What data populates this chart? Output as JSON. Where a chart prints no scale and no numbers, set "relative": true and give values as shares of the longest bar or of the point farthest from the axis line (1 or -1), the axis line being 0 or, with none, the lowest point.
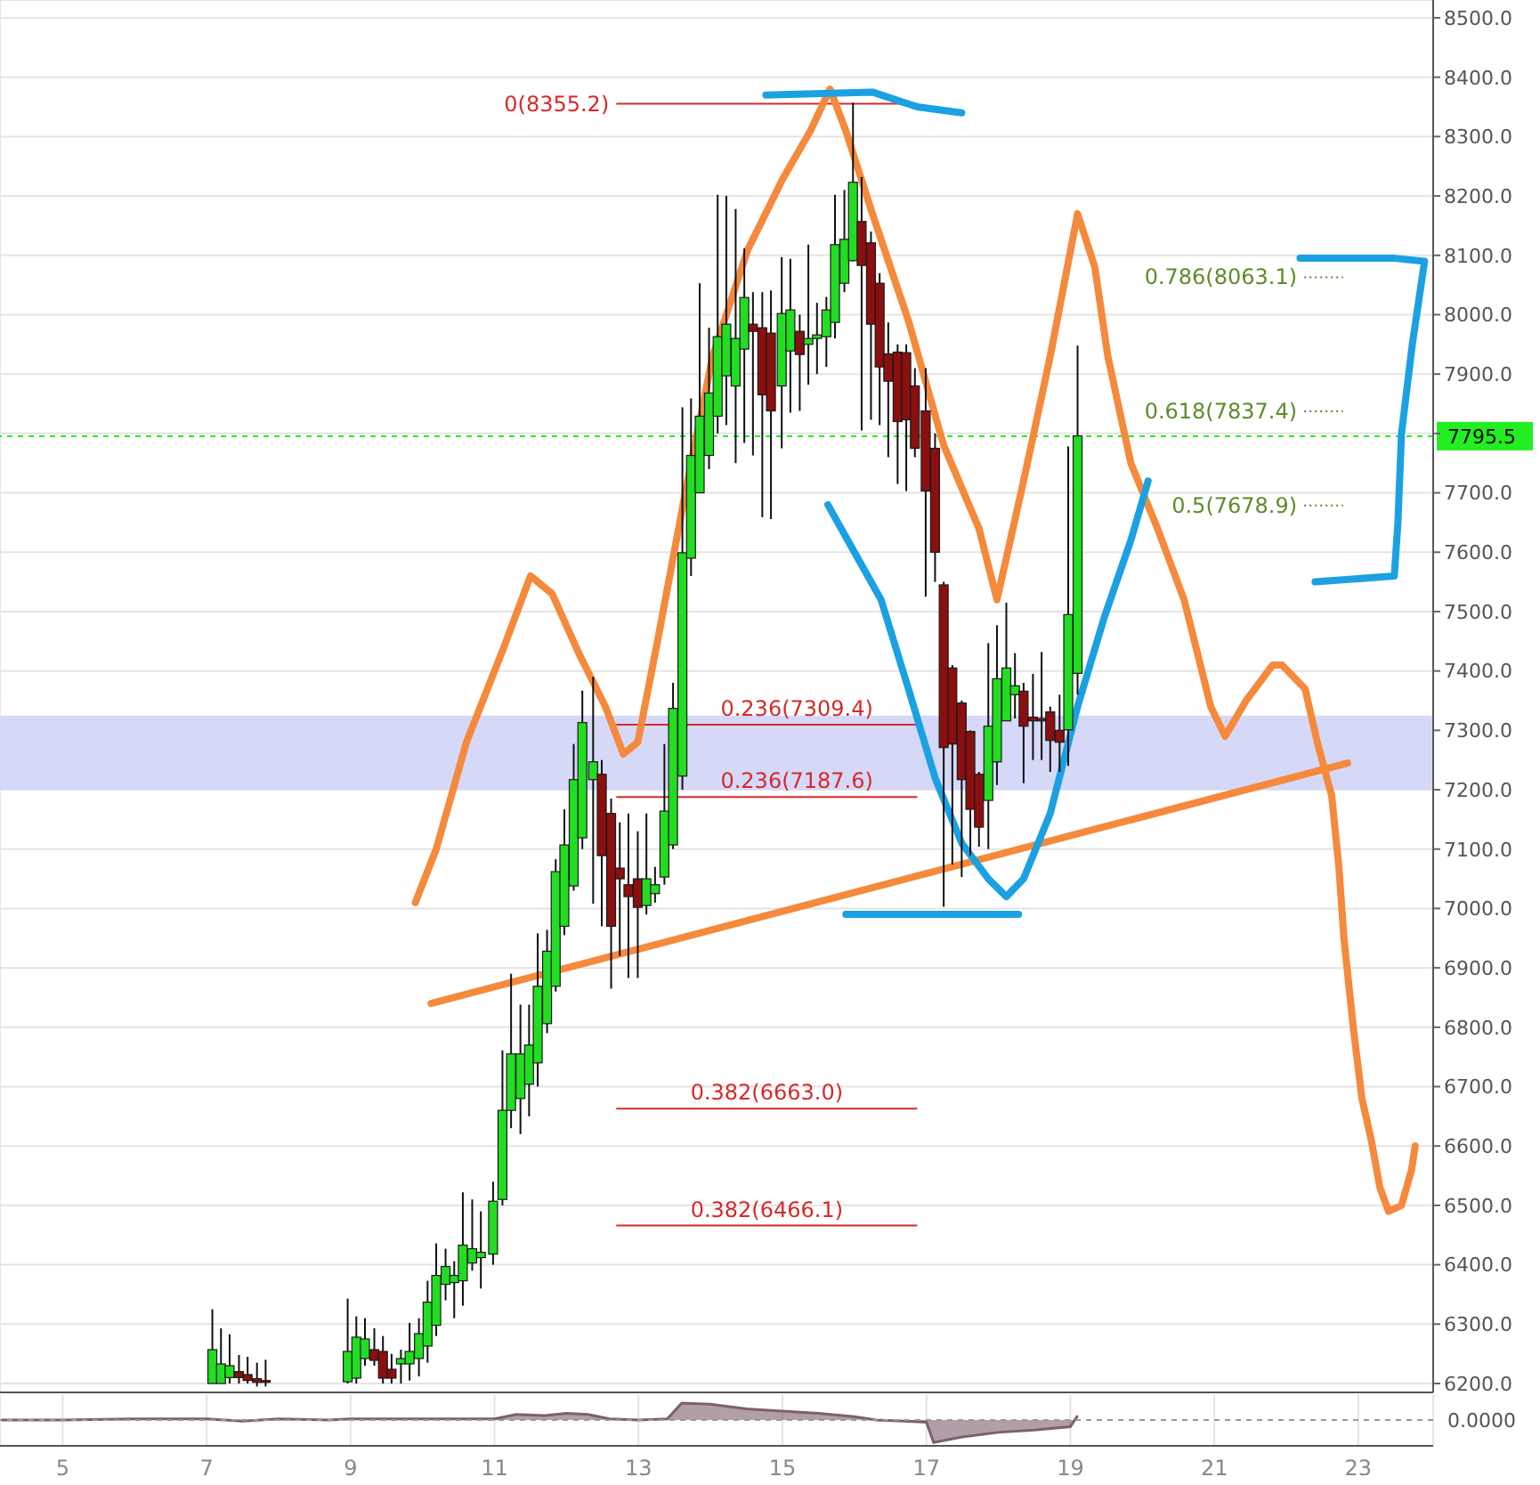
{
  "chart_data": [
    {
      "type": "candlestick",
      "x": [
        7.08,
        7.2,
        7.32,
        7.45,
        7.57,
        7.7,
        7.82,
        8.96,
        9.08,
        9.2,
        9.33,
        9.45,
        9.57,
        9.7,
        9.82,
        9.95,
        10.07,
        10.19,
        10.32,
        10.44,
        10.56,
        10.69,
        10.81,
        10.98,
        11.11,
        11.23,
        11.36,
        11.48,
        11.6,
        11.73,
        11.85,
        11.97,
        12.1,
        12.22,
        12.37,
        12.49,
        12.62,
        12.74,
        12.86,
        12.99,
        13.11,
        13.23,
        13.36,
        13.48,
        13.61,
        13.73,
        13.85,
        13.98,
        14.1,
        14.22,
        14.35,
        14.47,
        14.59,
        14.72,
        14.84,
        14.99,
        15.11,
        15.24,
        15.36,
        15.48,
        15.61,
        15.73,
        15.86,
        15.98,
        16.1,
        16.23,
        16.35,
        16.47,
        16.6,
        16.72,
        16.84,
        16.99,
        17.12,
        17.24,
        17.36,
        17.49,
        17.61,
        17.73,
        17.86,
        17.98,
        18.11,
        18.23,
        18.35,
        18.48,
        18.6,
        18.72,
        18.85,
        18.97,
        19.1
      ],
      "ohlc": [
        [
          6200,
          6325,
          6200,
          6257
        ],
        [
          6200,
          6293,
          6200,
          6233
        ],
        [
          6210,
          6283,
          6200,
          6230
        ],
        [
          6220,
          6248,
          6200,
          6210
        ],
        [
          6215,
          6245,
          6200,
          6205
        ],
        [
          6208,
          6235,
          6195,
          6202
        ],
        [
          6205,
          6240,
          6195,
          6202
        ],
        [
          6203,
          6343,
          6200,
          6254
        ],
        [
          6209,
          6313,
          6200,
          6278
        ],
        [
          6242,
          6310,
          6230,
          6275
        ],
        [
          6257,
          6293,
          6230,
          6239
        ],
        [
          6254,
          6280,
          6200,
          6209
        ],
        [
          6224,
          6250,
          6200,
          6209
        ],
        [
          6233,
          6257,
          6200,
          6242
        ],
        [
          6233,
          6302,
          6205,
          6254
        ],
        [
          6242,
          6310,
          6212,
          6284
        ],
        [
          6263,
          6373,
          6235,
          6337
        ],
        [
          6298,
          6436,
          6280,
          6382
        ],
        [
          6367,
          6427,
          6340,
          6397
        ],
        [
          6370,
          6406,
          6310,
          6382
        ],
        [
          6373,
          6522,
          6331,
          6433
        ],
        [
          6403,
          6510,
          6390,
          6427
        ],
        [
          6412,
          6490,
          6360,
          6421
        ],
        [
          6418,
          6540,
          6400,
          6507
        ],
        [
          6510,
          6761,
          6500,
          6660
        ],
        [
          6660,
          6890,
          6630,
          6755
        ],
        [
          6680,
          6838,
          6620,
          6755
        ],
        [
          6704,
          6838,
          6650,
          6770
        ],
        [
          6740,
          6958,
          6700,
          6869
        ],
        [
          6806,
          6964,
          6790,
          6928
        ],
        [
          6869,
          7083,
          6860,
          7062
        ],
        [
          6970,
          7167,
          6955,
          7107
        ],
        [
          7038,
          7277,
          7030,
          7217
        ],
        [
          7119,
          7367,
          7100,
          7313
        ],
        [
          7217,
          7390,
          7008,
          7247
        ],
        [
          7226,
          7250,
          6970,
          7089
        ],
        [
          7160,
          7185,
          6865,
          6970
        ],
        [
          7068,
          7145,
          6920,
          7050
        ],
        [
          7040,
          7160,
          6883,
          7020
        ],
        [
          7050,
          7130,
          6883,
          7002
        ],
        [
          7005,
          7160,
          6990,
          7050
        ],
        [
          7025,
          7070,
          7010,
          7040
        ],
        [
          7053,
          7277,
          7040,
          7164
        ],
        [
          7107,
          7380,
          7100,
          7337
        ],
        [
          7223,
          7844,
          7200,
          7599
        ],
        [
          7590,
          7859,
          7560,
          7763
        ],
        [
          7700,
          8053,
          7700,
          7829
        ],
        [
          7763,
          7978,
          7740,
          7868
        ],
        [
          7829,
          8202,
          7800,
          7963
        ],
        [
          7897,
          8200,
          7814,
          7984
        ],
        [
          7880,
          8178,
          7750,
          7960
        ],
        [
          7942,
          8112,
          7784,
          8029
        ],
        [
          7984,
          8038,
          7763,
          7972
        ],
        [
          7978,
          8038,
          7659,
          7865
        ],
        [
          7969,
          8041,
          7656,
          7838
        ],
        [
          7880,
          8097,
          7775,
          8002
        ],
        [
          7939,
          8094,
          7835,
          8008
        ],
        [
          7972,
          8000,
          7838,
          7933
        ],
        [
          7950,
          8118,
          7882,
          7960
        ],
        [
          7960,
          8020,
          7900,
          7966
        ],
        [
          7963,
          8030,
          7912,
          8008
        ],
        [
          7987,
          8202,
          7960,
          8118
        ],
        [
          8053,
          8210,
          8038,
          8127
        ],
        [
          8091,
          8357,
          8090,
          8223
        ],
        [
          8157,
          8232,
          7805,
          8083
        ],
        [
          8121,
          8140,
          7823,
          7984
        ],
        [
          8053,
          8070,
          7814,
          7912
        ],
        [
          7934,
          7987,
          7760,
          7888
        ],
        [
          7937,
          7950,
          7715,
          7820
        ],
        [
          7936,
          7950,
          7703,
          7823
        ],
        [
          7880,
          7910,
          7760,
          7775
        ],
        [
          7838,
          7910,
          7525,
          7703
        ],
        [
          7775,
          7800,
          7550,
          7600
        ],
        [
          7545,
          7550,
          7003,
          7271
        ],
        [
          7405,
          7410,
          7074,
          7277
        ],
        [
          7346,
          7350,
          7053,
          7217
        ],
        [
          7298,
          7300,
          7089,
          7167
        ],
        [
          7226,
          7230,
          7104,
          7137
        ],
        [
          7182,
          7447,
          7100,
          7307
        ],
        [
          7247,
          7477,
          7208,
          7387
        ],
        [
          7316,
          7515,
          7316,
          7405
        ],
        [
          7360,
          7430,
          7320,
          7375
        ],
        [
          7366,
          7380,
          7211,
          7307
        ],
        [
          7322,
          7395,
          7250,
          7316
        ],
        [
          7320,
          7432,
          7250,
          7316
        ],
        [
          7331,
          7340,
          7230,
          7283
        ],
        [
          7300,
          7360,
          7230,
          7280
        ],
        [
          7301,
          7778,
          7240,
          7495
        ],
        [
          7396,
          7948,
          7360,
          7796
        ]
      ],
      "colors": [
        "#22dd22",
        "#22dd22",
        "#22dd22",
        "#8b0f0f",
        "#8b0f0f",
        "#8b0f0f",
        "#8b0f0f",
        "#22dd22",
        "#22dd22",
        "#22dd22",
        "#8b0f0f",
        "#8b0f0f",
        "#8b0f0f",
        "#22dd22",
        "#22dd22",
        "#22dd22",
        "#22dd22",
        "#22dd22",
        "#22dd22",
        "#22dd22",
        "#22dd22",
        "#22dd22",
        "#22dd22",
        "#22dd22",
        "#22dd22",
        "#22dd22",
        "#22dd22",
        "#22dd22",
        "#22dd22",
        "#22dd22",
        "#22dd22",
        "#22dd22",
        "#22dd22",
        "#22dd22",
        "#22dd22",
        "#8b0f0f",
        "#8b0f0f",
        "#8b0f0f",
        "#8b0f0f",
        "#8b0f0f",
        "#22dd22",
        "#22dd22",
        "#22dd22",
        "#22dd22",
        "#22dd22",
        "#22dd22",
        "#22dd22",
        "#22dd22",
        "#22dd22",
        "#22dd22",
        "#22dd22",
        "#22dd22",
        "#8b0f0f",
        "#8b0f0f",
        "#8b0f0f",
        "#22dd22",
        "#22dd22",
        "#8b0f0f",
        "#22dd22",
        "#22dd22",
        "#22dd22",
        "#22dd22",
        "#22dd22",
        "#22dd22",
        "#8b0f0f",
        "#8b0f0f",
        "#8b0f0f",
        "#8b0f0f",
        "#8b0f0f",
        "#8b0f0f",
        "#8b0f0f",
        "#8b0f0f",
        "#8b0f0f",
        "#8b0f0f",
        "#8b0f0f",
        "#8b0f0f",
        "#8b0f0f",
        "#8b0f0f",
        "#22dd22",
        "#22dd22",
        "#22dd22",
        "#22dd22",
        "#8b0f0f",
        "#8b0f0f",
        "#8b0f0f",
        "#8b0f0f",
        "#8b0f0f",
        "#22dd22",
        "#22dd22"
      ],
      "series": [
        {
          "type": "line",
          "color": "#f5893c",
          "x": [
            9.9,
            10.19,
            10.61,
            11.13,
            11.5,
            11.8,
            12.17,
            12.54,
            12.79,
            12.99,
            13.28,
            13.65,
            14.03,
            14.52,
            15.01,
            15.39,
            15.66,
            15.88,
            16.25,
            16.75,
            17.24,
            17.73,
            17.98,
            18.35,
            18.72,
            19.1,
            19.34,
            19.52,
            19.84,
            20.21,
            20.58,
            20.95,
            21.15,
            21.44,
            21.81,
            21.94,
            22.26,
            22.43,
            22.63,
            22.73,
            22.8,
            22.93,
            23.05,
            23.18,
            23.3,
            23.42,
            23.6,
            23.74,
            23.79
          ],
          "values": [
            7010,
            7100,
            7280,
            7440,
            7560,
            7530,
            7430,
            7340,
            7260,
            7280,
            7460,
            7700,
            7930,
            8110,
            8230,
            8310,
            8380,
            8310,
            8170,
            7990,
            7780,
            7640,
            7520,
            7720,
            7930,
            8170,
            8080,
            7930,
            7750,
            7640,
            7520,
            7340,
            7290,
            7350,
            7410,
            7410,
            7370,
            7280,
            7190,
            7070,
            6950,
            6800,
            6680,
            6610,
            6530,
            6490,
            6500,
            6560,
            6600
          ]
        },
        {
          "type": "line",
          "color": "#f5893c",
          "x": [
            10.12,
            22.85
          ],
          "values": [
            6840,
            7245
          ]
        },
        {
          "type": "line",
          "color": "#1ba1e2",
          "x": [
            15.63,
            16.0,
            16.37,
            16.75,
            17.12,
            17.49,
            17.86,
            18.11,
            18.35,
            18.72,
            19.1,
            19.47,
            19.84,
            20.08
          ],
          "values": [
            7680,
            7600,
            7520,
            7370,
            7220,
            7110,
            7050,
            7020,
            7050,
            7160,
            7340,
            7490,
            7620,
            7720
          ]
        },
        {
          "type": "line",
          "color": "#1ba1e2",
          "x": [
            15.88,
            18.28
          ],
          "values": [
            6990,
            6990
          ]
        },
        {
          "type": "line",
          "color": "#1ba1e2",
          "x": [
            14.77,
            16.25,
            16.87,
            17.49
          ],
          "values": [
            8370,
            8375,
            8350,
            8340
          ]
        },
        {
          "type": "line",
          "color": "#1ba1e2",
          "x": [
            22.19,
            23.5,
            23.92,
            23.75,
            23.6,
            23.55,
            23.5,
            22.4
          ],
          "values": [
            8095,
            8095,
            8090,
            7950,
            7800,
            7650,
            7560,
            7550
          ]
        }
      ],
      "xlim": [
        4.13,
        24.04
      ],
      "xticks": [
        5,
        7,
        9,
        11,
        13,
        15,
        17,
        19,
        21,
        23
      ],
      "ylim": [
        6185,
        8530
      ],
      "yticks": [
        {
          "value": 6200,
          "label": "6200.0"
        },
        {
          "value": 6300,
          "label": "6300.0"
        },
        {
          "value": 6400,
          "label": "6400.0"
        },
        {
          "value": 6500,
          "label": "6500.0"
        },
        {
          "value": 6600,
          "label": "6600.0"
        },
        {
          "value": 6700,
          "label": "6700.0"
        },
        {
          "value": 6800,
          "label": "6800.0"
        },
        {
          "value": 6900,
          "label": "6900.0"
        },
        {
          "value": 7000,
          "label": "7000.0"
        },
        {
          "value": 7100,
          "label": "7100.0"
        },
        {
          "value": 7200,
          "label": "7200.0"
        },
        {
          "value": 7300,
          "label": "7300.0"
        },
        {
          "value": 7400,
          "label": "7400.0"
        },
        {
          "value": 7500,
          "label": "7500.0"
        },
        {
          "value": 7600,
          "label": "7600.0"
        },
        {
          "value": 7700,
          "label": "7700.0"
        },
        {
          "value": 7800,
          "label": null
        },
        {
          "value": 7900,
          "label": "7900.0"
        },
        {
          "value": 8000,
          "label": "8000.0"
        },
        {
          "value": 8100,
          "label": "8100.0"
        },
        {
          "value": 8200,
          "label": "8200.0"
        },
        {
          "value": 8300,
          "label": "8300.0"
        },
        {
          "value": 8400,
          "label": "8400.0"
        },
        {
          "value": 8500,
          "label": "8500.0"
        }
      ],
      "tick_labels": "y",
      "grid": true,
      "bands": [
        {
          "axis": "y",
          "from": 7200,
          "to": 7325,
          "color": "#d6d8f8"
        }
      ],
      "ref_lines": [
        {
          "axis": "y",
          "value": 8355.2,
          "label": "0(8355.2)",
          "color": "#d42a2a",
          "line_style": "solid"
        },
        {
          "axis": "y",
          "value": 7309.4,
          "label": "0.236(7309.4)",
          "color": "#d42a2a",
          "line_style": "solid"
        },
        {
          "axis": "y",
          "value": 7187.6,
          "label": "0.236(7187.6)",
          "color": "#d42a2a",
          "line_style": "solid"
        },
        {
          "axis": "y",
          "value": 6663.0,
          "label": "0.382(6663.0)",
          "color": "#d42a2a",
          "line_style": "solid"
        },
        {
          "axis": "y",
          "value": 6466.1,
          "label": "0.382(6466.1)",
          "color": "#d42a2a",
          "line_style": "solid"
        },
        {
          "axis": "y",
          "value": 8063.1,
          "label": "0.786(8063.1)",
          "color": "#5d8c2a",
          "line_style": "dotted"
        },
        {
          "axis": "y",
          "value": 7837.4,
          "label": "0.618(7837.4)",
          "color": "#5d8c2a",
          "line_style": "dotted"
        },
        {
          "axis": "y",
          "value": 7678.9,
          "label": "0.5(7678.9)",
          "color": "#5d8c2a",
          "line_style": "dotted"
        },
        {
          "axis": "y",
          "value": 7795.5,
          "label": "7795.5",
          "color": "#22ee22",
          "line_style": "dashed"
        }
      ]
    },
    {
      "type": "area",
      "relative": true,
      "color": "#7d5f6e",
      "x": [
        4.15,
        5,
        6,
        7,
        7.5,
        8,
        8.7,
        9,
        10,
        11,
        11.3,
        11.7,
        12,
        12.3,
        12.6,
        13,
        13.4,
        13.6,
        14,
        14.5,
        15,
        15.5,
        16,
        16.3,
        16.7,
        17,
        17.1,
        17.5,
        18,
        18.5,
        19,
        19.1
      ],
      "values": [
        0,
        0,
        0.05,
        0.05,
        -0.05,
        0.05,
        0,
        0.05,
        0.05,
        0.05,
        0.25,
        0.2,
        0.3,
        0.25,
        0.05,
        0,
        0.05,
        0.75,
        0.7,
        0.5,
        0.4,
        0.3,
        0.15,
        0,
        -0.05,
        -0.1,
        -1,
        -0.75,
        -0.55,
        -0.45,
        -0.3,
        0.2
      ],
      "xlim": [
        4.13,
        24.04
      ],
      "xticks": [
        5,
        7,
        9,
        11,
        13,
        15,
        17,
        19,
        21,
        23
      ],
      "tick_labels": "x",
      "grid": "x",
      "ref_lines": [
        {
          "axis": "y",
          "value": 0,
          "label": "0.0000",
          "line_style": "dashed"
        }
      ]
    }
  ]
}
